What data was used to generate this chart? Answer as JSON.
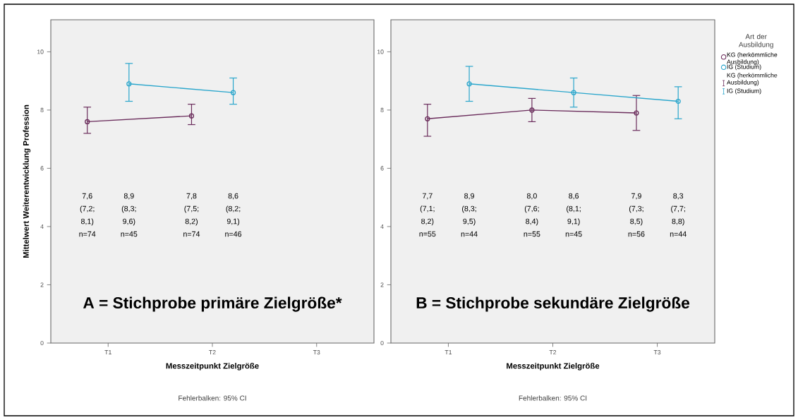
{
  "chart_data": [
    {
      "type": "line",
      "title": "A = Stichprobe primäre Zielgröße*",
      "xlabel": "Messzeitpunkt Zielgröße",
      "ylabel": "Mittelwert Weiterentwicklung Profession",
      "categories": [
        "T1",
        "T2",
        "T3"
      ],
      "ylim": [
        0,
        11.1
      ],
      "yticks": [
        0,
        2,
        4,
        6,
        8,
        10
      ],
      "marker": "circle",
      "line_style": "solid",
      "legend": false,
      "annotations": [
        "7,6 (7,2; 8,1) n=74",
        "8,9 (8,3; 9,6) n=45",
        "7,8 (7,5; 8,2) n=74",
        "8,6 (8,2; 9,1) n=46",
        "Fehlerbalken: 95% CI"
      ],
      "series": [
        {
          "color": "#6b2d5c",
          "values": [
            7.6,
            7.8,
            null
          ],
          "errors": [
            [
              7.2,
              8.1
            ],
            [
              7.5,
              8.2
            ],
            null
          ]
        },
        {
          "color": "#2aa6cc",
          "values": [
            8.9,
            8.6,
            null
          ],
          "errors": [
            [
              8.3,
              9.6
            ],
            [
              8.2,
              9.1
            ],
            null
          ]
        }
      ]
    },
    {
      "type": "line",
      "title": "B = Stichprobe sekundäre Zielgröße",
      "xlabel": "Messzeitpunkt Zielgröße",
      "categories": [
        "T1",
        "T2",
        "T3"
      ],
      "ylim": [
        0,
        11.1
      ],
      "yticks": [
        0,
        2,
        4,
        6,
        8,
        10
      ],
      "marker": "circle",
      "line_style": "solid",
      "legend": "right",
      "legend_title": "Art der Ausbildung",
      "annotations": [
        "7,7 (7,1; 8,2) n=55",
        "8,9 (8,3; 9,5) n=44",
        "8,0 (7,6; 8,4) n=55",
        "8,6 (8,1; 9,1) n=45",
        "7,9 (7,3; 8,5) n=56",
        "8,3 (7,7; 8,8) n=44",
        "Fehlerbalken: 95% CI"
      ],
      "series": [
        {
          "name": "KG (herkömmliche Ausbildung)",
          "color": "#6b2d5c",
          "values": [
            7.7,
            8.0,
            7.9
          ],
          "errors": [
            [
              7.1,
              8.2
            ],
            [
              7.6,
              8.4
            ],
            [
              7.3,
              8.5
            ]
          ]
        },
        {
          "name": "IG (Studium)",
          "color": "#2aa6cc",
          "values": [
            8.9,
            8.6,
            8.3
          ],
          "errors": [
            [
              8.3,
              9.5
            ],
            [
              8.1,
              9.1
            ],
            [
              7.7,
              8.8
            ]
          ]
        }
      ]
    }
  ]
}
